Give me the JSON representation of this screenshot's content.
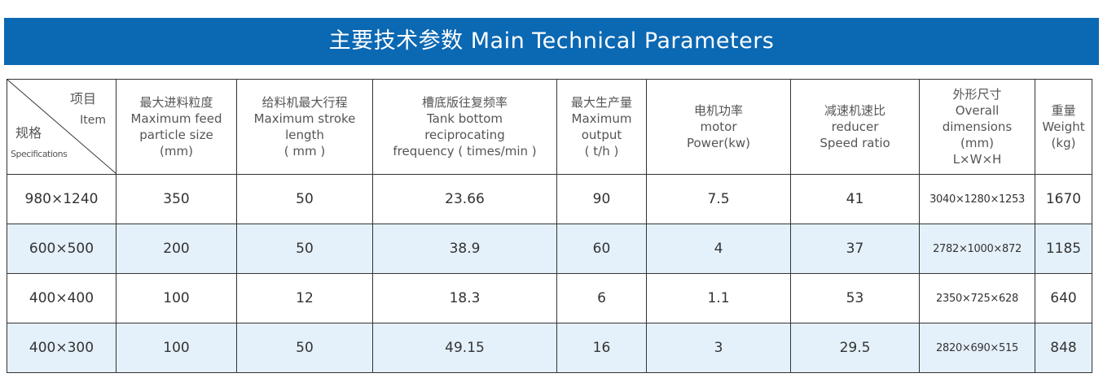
{
  "title": "主要技术参数  Main Technical Parameters",
  "corner": {
    "item_cn": "项目",
    "item_en": "Item",
    "spec_cn": "规格",
    "spec_en": "Specifications"
  },
  "columns": [
    {
      "lines": [
        "最大进料粒度",
        "Maximum feed",
        "particle size",
        "(mm)"
      ]
    },
    {
      "lines": [
        "给料机最大行程",
        "Maximum stroke",
        "length",
        "( mm )"
      ]
    },
    {
      "lines": [
        "槽底版往复频率",
        "Tank bottom",
        "reciprocating",
        "frequency ( times/min )"
      ]
    },
    {
      "lines": [
        "最大生产量",
        "Maximum",
        "output",
        "( t/h )"
      ]
    },
    {
      "lines": [
        "电机功率",
        "motor",
        "Power(kw)"
      ]
    },
    {
      "lines": [
        "减速机速比",
        "reducer",
        "Speed ratio"
      ]
    },
    {
      "lines": [
        "外形尺寸",
        "Overall",
        "dimensions",
        "(mm)",
        "L×W×H"
      ]
    },
    {
      "lines": [
        "重量",
        "Weight",
        "(kg)"
      ]
    }
  ],
  "rows": [
    [
      "980×1240",
      "350",
      "50",
      "23.66",
      "90",
      "7.5",
      "41",
      "3040×1280×1253",
      "1670"
    ],
    [
      "600×500",
      "200",
      "50",
      "38.9",
      "60",
      "4",
      "37",
      "2782×1000×872",
      "1185"
    ],
    [
      "400×400",
      "100",
      "12",
      "18.3",
      "6",
      "1.1",
      "53",
      "2350×725×628",
      "640"
    ],
    [
      "400×300",
      "100",
      "50",
      "49.15",
      "16",
      "3",
      "29.5",
      "2820×690×515",
      "848"
    ]
  ]
}
